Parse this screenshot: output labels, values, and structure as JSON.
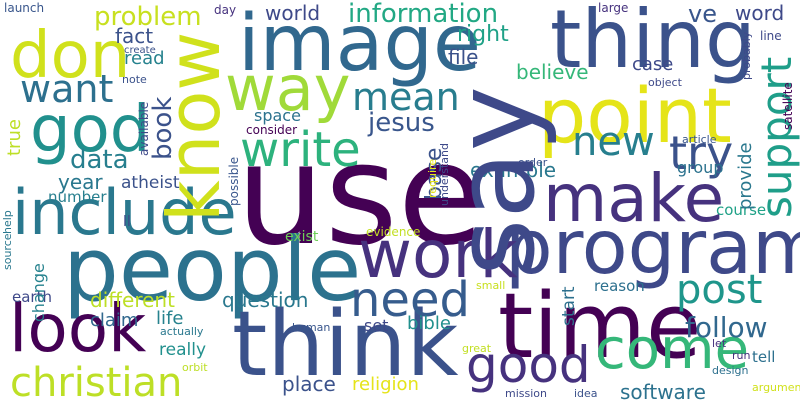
{
  "colors": {
    "background": "#ffffff",
    "palette": [
      "#440154",
      "#46327e",
      "#365c8d",
      "#277f8e",
      "#1fa187",
      "#4ac16d",
      "#a0da39",
      "#fde725"
    ]
  },
  "words": [
    "use",
    "say",
    "know",
    "people",
    "think",
    "time",
    "program",
    "image",
    "thing",
    "point",
    "make",
    "work",
    "include",
    "god",
    "way",
    "look",
    "come",
    "don",
    "write",
    "new",
    "need",
    "good",
    "christian",
    "try",
    "support",
    "post",
    "want",
    "mean",
    "follow",
    "information",
    "problem",
    "year",
    "book",
    "example",
    "file",
    "world",
    "data",
    "software",
    "jesus",
    "believe",
    "base",
    "question",
    "different",
    "place",
    "religion",
    "bible",
    "right",
    "fact",
    "ve",
    "word",
    "group",
    "provide",
    "case",
    "read",
    "life",
    "claim",
    "space",
    "really",
    "atheist",
    "number",
    "exist",
    "earth",
    "reason",
    "course",
    "tell",
    "start",
    "set",
    "change",
    "true",
    "ll",
    "launch",
    "day",
    "create",
    "note",
    "available",
    "consider",
    "possible",
    "help",
    "source",
    "evidence",
    "require",
    "understand",
    "small",
    "human",
    "actually",
    "orbit",
    "mission",
    "idea",
    "great",
    "design",
    "large",
    "object",
    "article",
    "probably",
    "line",
    "satellite",
    "order",
    "run",
    "let",
    "argument"
  ]
}
